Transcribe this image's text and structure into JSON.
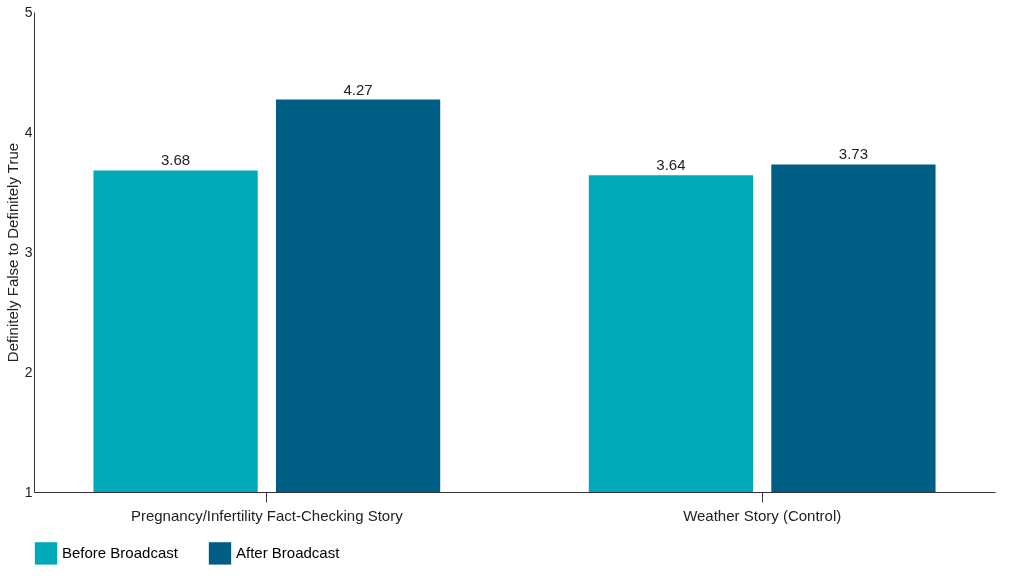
{
  "chart_data": {
    "type": "bar",
    "ylabel": "Definitely False to Definitely True",
    "categories": [
      "Pregnancy/Infertility Fact-Checking Story",
      "Weather Story (Control)"
    ],
    "series": [
      {
        "name": "Before Broadcast",
        "color": "#00a9b7",
        "values": [
          3.68,
          3.64
        ]
      },
      {
        "name": "After Broadcast",
        "color": "#005e85",
        "values": [
          4.27,
          3.73
        ]
      }
    ],
    "ylim": [
      1,
      5
    ],
    "yticks": [
      1,
      2,
      3,
      4,
      5
    ],
    "grid": false,
    "legend": "bottom",
    "data_labels": true
  }
}
